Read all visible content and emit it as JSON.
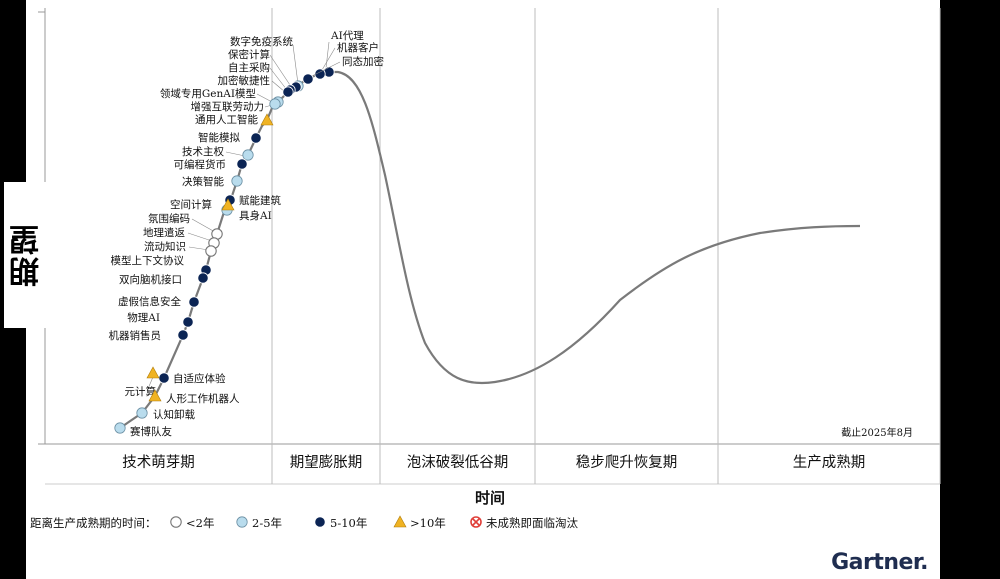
{
  "chart_data": {
    "type": "hype-cycle",
    "ylabel": "期望",
    "xlabel": "时间",
    "date_note": "截止2025年8月",
    "phases": [
      "技术萌芽期",
      "期望膨胀期",
      "泡沫破裂低谷期",
      "稳步爬升恢复期",
      "生产成熟期"
    ],
    "legend": {
      "title": "距离生产成熟期的时间：",
      "items": [
        {
          "key": "lt2",
          "label": "<2年"
        },
        {
          "key": "y2to5",
          "label": "2-5年"
        },
        {
          "key": "y5to10",
          "label": "5-10年"
        },
        {
          "key": "gt10",
          "label": ">10年"
        },
        {
          "key": "obsolete",
          "label": "未成熟即面临淘汰"
        }
      ]
    },
    "colors": {
      "curve": "#7a7a7a",
      "dark_dot": "#0b2454",
      "light_dot": "#b9dced",
      "triangle": "#f0b323",
      "obsolete": "#e0403a",
      "grid": "#bcbcbc"
    },
    "technologies": [
      {
        "name": "AI代理",
        "category": "y5to10"
      },
      {
        "name": "机器客户",
        "category": "y5to10"
      },
      {
        "name": "同态加密",
        "category": "y5to10"
      },
      {
        "name": "数字免疫系统",
        "category": "y2to5"
      },
      {
        "name": "保密计算",
        "category": "y5to10"
      },
      {
        "name": "自主采购",
        "category": "y5to10"
      },
      {
        "name": "加密敏捷性",
        "category": "y5to10"
      },
      {
        "name": "领域专用GenAI模型",
        "category": "y2to5"
      },
      {
        "name": "增强互联劳动力",
        "category": "y2to5"
      },
      {
        "name": "通用人工智能",
        "category": "gt10"
      },
      {
        "name": "智能模拟",
        "category": "y5to10"
      },
      {
        "name": "技术主权",
        "category": "y2to5"
      },
      {
        "name": "可编程货币",
        "category": "y5to10"
      },
      {
        "name": "决策智能",
        "category": "y2to5"
      },
      {
        "name": "空间计算",
        "category": "y2to5"
      },
      {
        "name": "赋能建筑",
        "category": "y5to10"
      },
      {
        "name": "具身AI",
        "category": "gt10"
      },
      {
        "name": "氛围编码",
        "category": "lt2"
      },
      {
        "name": "地理遣返",
        "category": "lt2"
      },
      {
        "name": "流动知识",
        "category": "lt2"
      },
      {
        "name": "模型上下文协议",
        "category": "y5to10"
      },
      {
        "name": "双向脑机接口",
        "category": "y5to10"
      },
      {
        "name": "虚假信息安全",
        "category": "y5to10"
      },
      {
        "name": "物理AI",
        "category": "y5to10"
      },
      {
        "name": "机器销售员",
        "category": "y5to10"
      },
      {
        "name": "自适应体验",
        "category": "y5to10"
      },
      {
        "name": "元计算",
        "category": "gt10"
      },
      {
        "name": "人形工作机器人",
        "category": "gt10"
      },
      {
        "name": "认知卸载",
        "category": "y2to5"
      },
      {
        "name": "赛博队友",
        "category": "y2to5"
      }
    ]
  },
  "brand": "Gartner",
  "brand_dot": "."
}
